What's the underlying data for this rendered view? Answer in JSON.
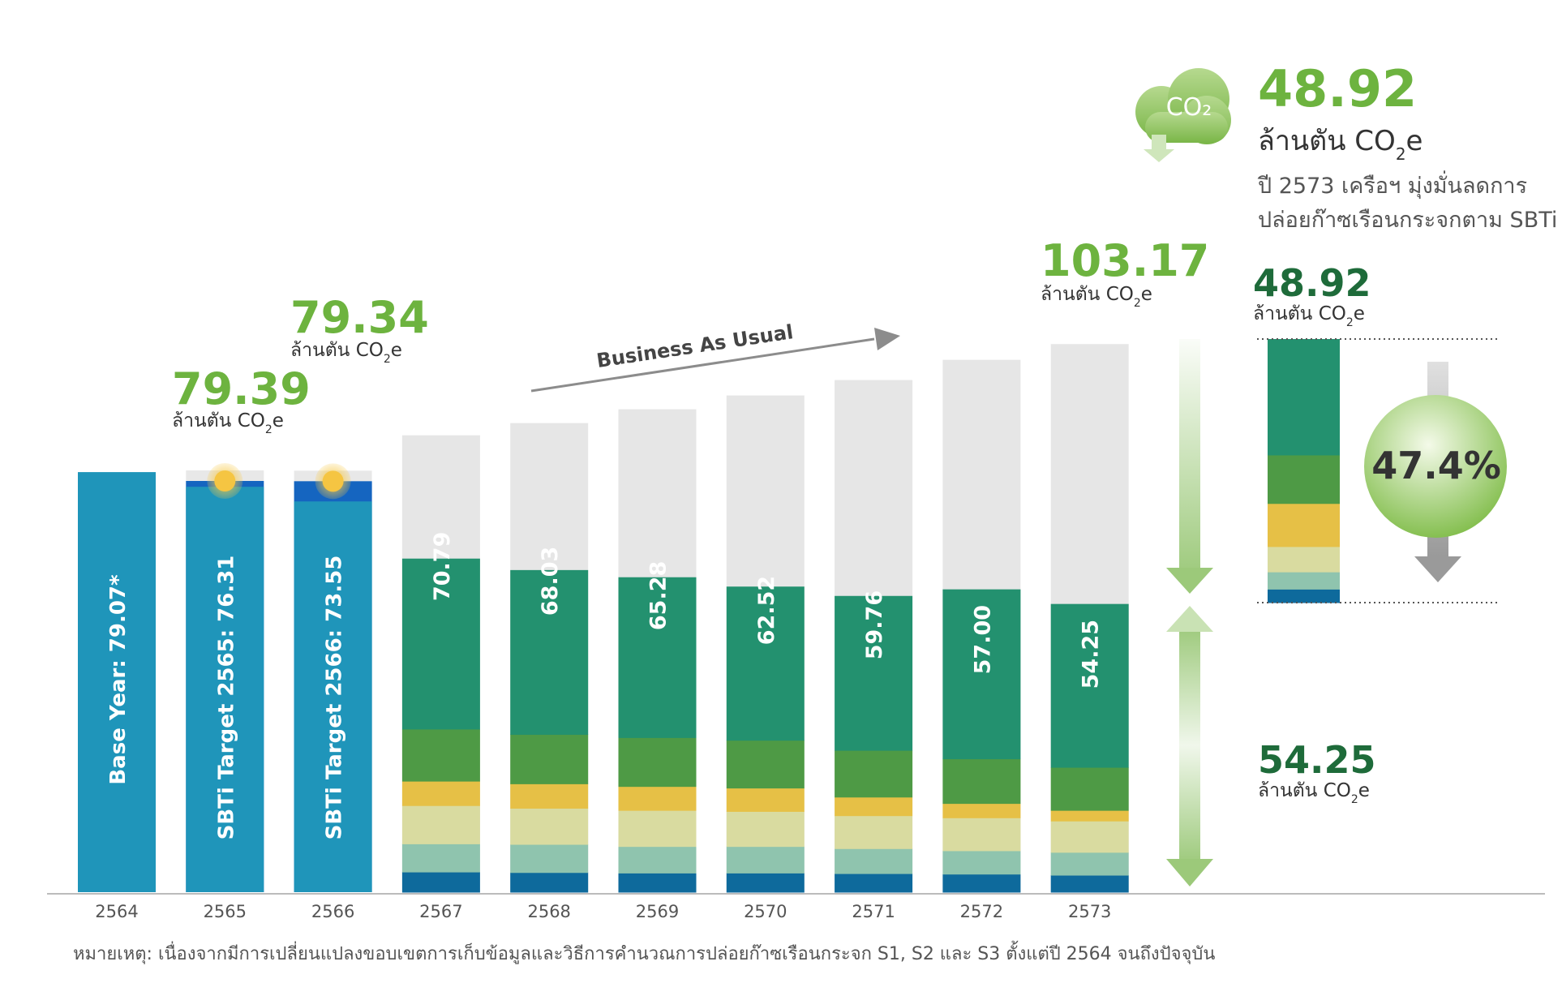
{
  "chart_data": {
    "type": "bar",
    "categories": [
      "2564",
      "2565",
      "2566",
      "2567",
      "2568",
      "2569",
      "2570",
      "2571",
      "2572",
      "2573"
    ],
    "ylim": [
      0,
      110
    ],
    "unit_label": "ล้านตัน CO2e",
    "bars": [
      {
        "year": "2564",
        "kind": "base",
        "value": 79.07,
        "label": "Base Year: 79.07*"
      },
      {
        "year": "2565",
        "kind": "sbti",
        "total": 79.39,
        "target": 76.31,
        "label": "SBTi Target 2565: 76.31",
        "headline": "79.39"
      },
      {
        "year": "2566",
        "kind": "sbti",
        "total": 79.34,
        "target": 73.55,
        "label": "SBTi Target 2566: 73.55",
        "headline": "79.34"
      },
      {
        "year": "2567",
        "kind": "stack",
        "bau": 86.0,
        "value": 70.79,
        "label": "70.79",
        "segments": [
          3.8,
          5.3,
          7.2,
          4.6,
          9.8,
          32.09
        ]
      },
      {
        "year": "2568",
        "kind": "stack",
        "bau": 88.3,
        "value": 68.03,
        "label": "68.03",
        "segments": [
          3.7,
          5.3,
          6.8,
          4.6,
          9.3,
          30.93
        ]
      },
      {
        "year": "2569",
        "kind": "stack",
        "bau": 90.9,
        "value": 65.28,
        "label": "65.28",
        "segments": [
          3.6,
          5.0,
          6.8,
          4.5,
          9.2,
          30.18
        ]
      },
      {
        "year": "2570",
        "kind": "stack",
        "bau": 93.5,
        "value": 62.52,
        "label": "62.52",
        "segments": [
          3.6,
          5.0,
          6.6,
          4.4,
          9.0,
          28.92
        ]
      },
      {
        "year": "2571",
        "kind": "stack",
        "bau": 96.4,
        "value": 59.76,
        "label": "59.76",
        "segments": [
          3.5,
          4.7,
          6.2,
          3.5,
          8.8,
          29.06
        ]
      },
      {
        "year": "2572",
        "kind": "stack",
        "bau": 100.2,
        "value": 57.0,
        "label": "57.00",
        "segments": [
          3.4,
          4.4,
          6.2,
          2.7,
          8.4,
          31.9
        ]
      },
      {
        "year": "2573",
        "kind": "stack",
        "bau": 103.17,
        "value": 54.25,
        "label": "54.25",
        "segments": [
          3.2,
          4.3,
          5.9,
          2.0,
          8.1,
          30.75
        ],
        "headline": "103.17"
      }
    ],
    "reduction": {
      "value": 48.92,
      "percent": "47.4%",
      "segments": [
        2.5,
        3.2,
        4.7,
        8.0,
        9.0,
        21.52
      ]
    },
    "series_colors": [
      "#0e6a9c",
      "#8fc4ae",
      "#d9dba0",
      "#e6c046",
      "#4e9a45",
      "#23916f"
    ],
    "bau_color": "#e6e6e6",
    "base_color": "#1f95ba",
    "target_top_color": "#1565c0",
    "annotations": {
      "business_as_usual": "Business As Usual"
    }
  },
  "texts": {
    "unit_prefix": "ล้านตัน CO",
    "unit_sub": "2",
    "unit_suffix": "e",
    "hero_value": "48.92",
    "hero_line1": "ปี 2573 เครือฯ มุ่งมั่นลดการ",
    "hero_line2": "ปล่อยก๊าซเรือนกระจกตาม SBTi",
    "right_top_value": "48.92",
    "right_bottom_value": "54.25",
    "cloud_text": "CO₂",
    "note": "หมายเหตุ: เนื่องจากมีการเปลี่ยนแปลงขอบเขตการเก็บข้อมูลและวิธีการคำนวณการปล่อยก๊าซเรือนกระจก S1, S2 และ S3 ตั้งแต่ปี 2564 จนถึงปัจจุบัน"
  }
}
